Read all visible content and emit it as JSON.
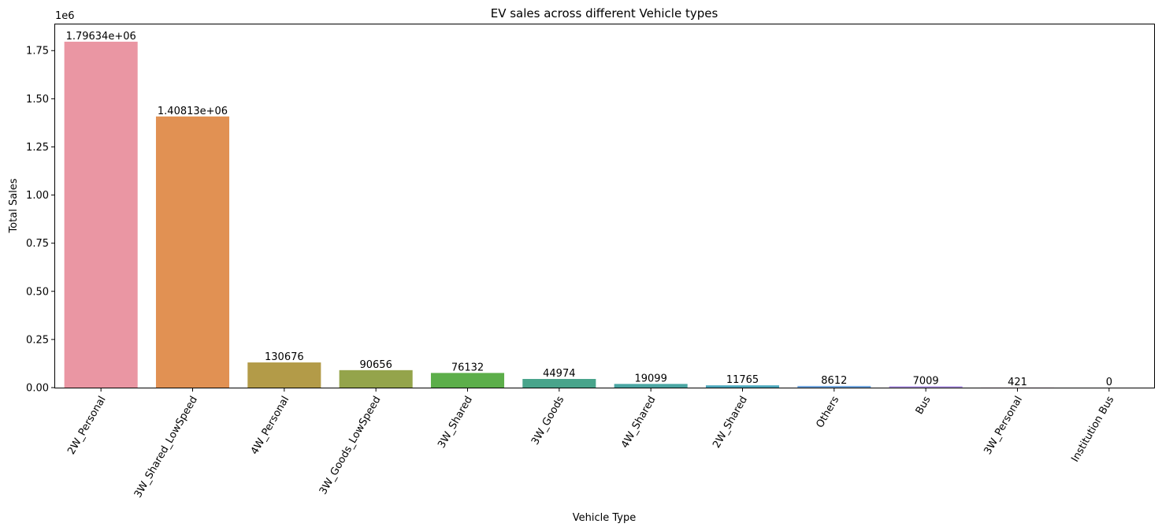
{
  "chart_data": {
    "type": "bar",
    "title": "EV sales across different Vehicle types",
    "xlabel": "Vehicle Type",
    "ylabel": "Total Sales",
    "y_offset_text": "1e6",
    "ylim": [
      0,
      1886000
    ],
    "yticks": [
      0,
      250000,
      500000,
      750000,
      1000000,
      1250000,
      1500000,
      1750000
    ],
    "ytick_labels": [
      "0.00",
      "0.25",
      "0.50",
      "0.75",
      "1.00",
      "1.25",
      "1.50",
      "1.75"
    ],
    "grid": false,
    "legend": "none",
    "categories": [
      "2W_Personal",
      "3W_Shared_LowSpeed",
      "4W_Personal",
      "3W_Goods_LowSpeed",
      "3W_Shared",
      "3W_Goods",
      "4W_Shared",
      "2W_Shared",
      "Others",
      "Bus",
      "3W_Personal",
      "Institution Bus"
    ],
    "values": [
      1796340,
      1408130,
      130676,
      90656,
      76132,
      44974,
      19099,
      11765,
      8612,
      7009,
      421,
      0
    ],
    "data_labels": [
      "1.79634e+06",
      "1.40813e+06",
      "130676",
      "90656",
      "76132",
      "44974",
      "19099",
      "11765",
      "8612",
      "7009",
      "421",
      "0"
    ],
    "colors": [
      "#ea96a3",
      "#e19153",
      "#b39b48",
      "#94a44b",
      "#5cae4a",
      "#48a48b",
      "#4aa6a3",
      "#4ca8bc",
      "#72a7e0",
      "#b59ae8",
      "#e88fd9",
      "#eb91c4"
    ]
  }
}
